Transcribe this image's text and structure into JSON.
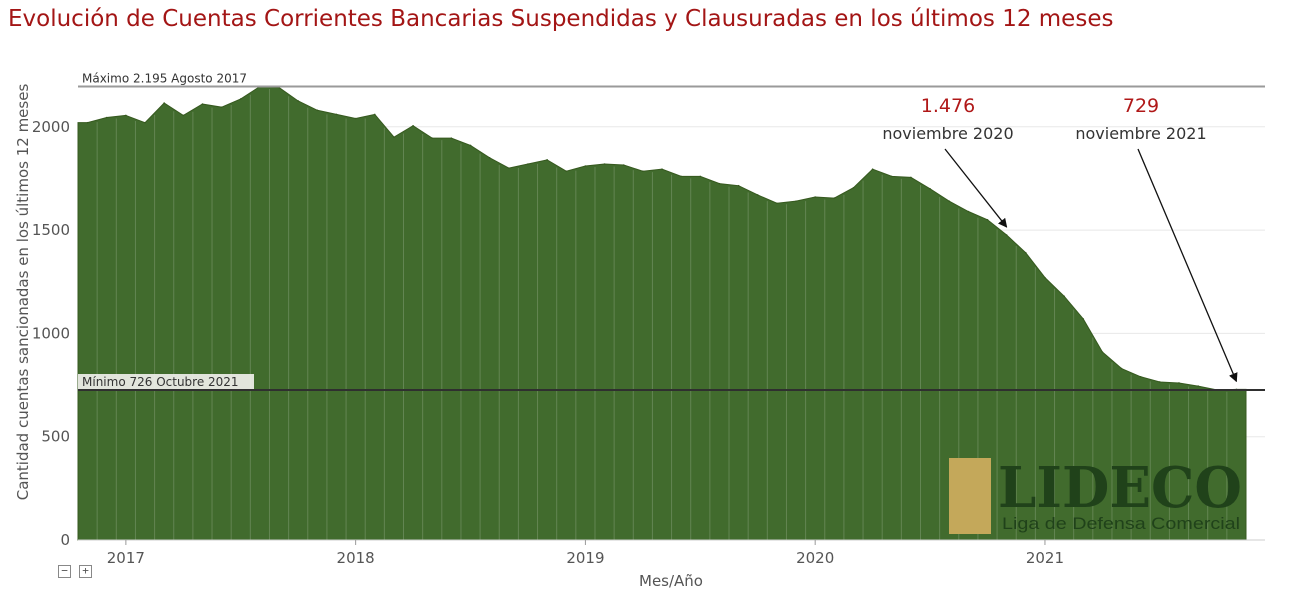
{
  "chart_data": {
    "type": "area",
    "title": "Evolución de Cuentas Corrientes Bancarias Suspendidas y Clausuradas en los últimos 12 meses",
    "xlabel": "Mes/Año",
    "ylabel": "Cantidad cuentas sancionadas en los últimos 12 meses",
    "ylim": [
      0,
      2300
    ],
    "yticks": [
      0,
      500,
      1000,
      1500,
      2000
    ],
    "xtick_labels": [
      "2017",
      "2018",
      "2019",
      "2020",
      "2021"
    ],
    "grid": true,
    "color": "#416b2d",
    "start_month": "2016-11",
    "x": [
      "2016-11",
      "2016-12",
      "2017-01",
      "2017-02",
      "2017-03",
      "2017-04",
      "2017-05",
      "2017-06",
      "2017-07",
      "2017-08",
      "2017-09",
      "2017-10",
      "2017-11",
      "2017-12",
      "2018-01",
      "2018-02",
      "2018-03",
      "2018-04",
      "2018-05",
      "2018-06",
      "2018-07",
      "2018-08",
      "2018-09",
      "2018-10",
      "2018-11",
      "2018-12",
      "2019-01",
      "2019-02",
      "2019-03",
      "2019-04",
      "2019-05",
      "2019-06",
      "2019-07",
      "2019-08",
      "2019-09",
      "2019-10",
      "2019-11",
      "2019-12",
      "2020-01",
      "2020-02",
      "2020-03",
      "2020-04",
      "2020-05",
      "2020-06",
      "2020-07",
      "2020-08",
      "2020-09",
      "2020-10",
      "2020-11",
      "2020-12",
      "2021-01",
      "2021-02",
      "2021-03",
      "2021-04",
      "2021-05",
      "2021-06",
      "2021-07",
      "2021-08",
      "2021-09",
      "2021-10",
      "2021-11"
    ],
    "values": [
      2020,
      2045,
      2055,
      2020,
      2115,
      2055,
      2110,
      2095,
      2135,
      2195,
      2190,
      2125,
      2080,
      2060,
      2040,
      2060,
      1950,
      2005,
      1945,
      1945,
      1910,
      1850,
      1800,
      1820,
      1840,
      1785,
      1810,
      1820,
      1815,
      1785,
      1795,
      1760,
      1760,
      1725,
      1715,
      1670,
      1630,
      1640,
      1660,
      1655,
      1705,
      1795,
      1760,
      1755,
      1700,
      1640,
      1590,
      1550,
      1476,
      1390,
      1270,
      1180,
      1070,
      910,
      830,
      790,
      765,
      760,
      745,
      726,
      729
    ],
    "reference_lines": [
      {
        "label": "Máximo 2.195 Agosto 2017",
        "value": 2195
      },
      {
        "label": "Mínimo 726 Octubre 2021",
        "value": 726
      }
    ],
    "annotations": [
      {
        "value_text": "1.476",
        "date_text": "noviembre 2020",
        "x": "2020-11",
        "y": 1476
      },
      {
        "value_text": "729",
        "date_text": "noviembre 2021",
        "x": "2021-11",
        "y": 729
      }
    ]
  },
  "logo": {
    "name": "LIDECO",
    "tagline": "Liga de Defensa Comercial"
  },
  "controls": {
    "zoom_out": "−",
    "zoom_in": "+"
  }
}
